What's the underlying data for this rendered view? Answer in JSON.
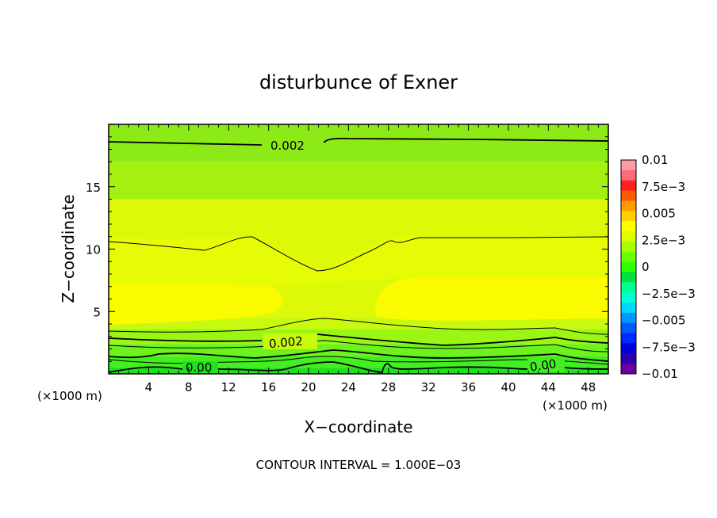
{
  "chart_data": {
    "type": "heatmap",
    "title": "disturbunce of Exner",
    "xlabel": "X−coordinate",
    "ylabel": "Z−coordinate",
    "x_unit_left": "(×1000 m)",
    "x_unit_right": "(×1000 m)",
    "xlim": [
      0,
      50
    ],
    "ylim": [
      0,
      20
    ],
    "x_ticks": [
      "4",
      "8",
      "12",
      "16",
      "20",
      "24",
      "28",
      "32",
      "36",
      "40",
      "44",
      "48"
    ],
    "y_ticks": [
      "5",
      "10",
      "15"
    ],
    "footer": "CONTOUR INTERVAL = 1.000E−03",
    "colorbar": {
      "labels": [
        "0.01",
        "7.5e−3",
        "0.005",
        "2.5e−3",
        "0",
        "−2.5e−3",
        "−0.005",
        "−7.5e−3",
        "−0.01"
      ],
      "levels": [
        0.01,
        0.0075,
        0.005,
        0.0025,
        0,
        -0.0025,
        -0.005,
        -0.0075,
        -0.01
      ],
      "colors": [
        "#ff9aa8",
        "#ff6a78",
        "#ff2020",
        "#ff5a00",
        "#ff9a00",
        "#ffd000",
        "#ffff00",
        "#dcff00",
        "#a8ff00",
        "#6cff00",
        "#30ff00",
        "#00e040",
        "#00ff8c",
        "#00ffd2",
        "#00d8ff",
        "#0096ff",
        "#005aff",
        "#0028ff",
        "#0000d8",
        "#2a00b0",
        "#6a00a0"
      ]
    },
    "contour_labels": [
      "0.002",
      "0.002",
      "0.00",
      "0.00"
    ],
    "bands": [
      {
        "z0": 0.0,
        "z1": 0.5,
        "color": "#1ee21e"
      },
      {
        "z0": 0.5,
        "z1": 1.4,
        "color": "#44ee22"
      },
      {
        "z0": 1.4,
        "z1": 2.4,
        "color": "#6cf21c"
      },
      {
        "z0": 2.4,
        "z1": 3.6,
        "color": "#9cf614"
      },
      {
        "z0": 3.6,
        "z1": 4.5,
        "color": "#c8fa0e"
      },
      {
        "z0": 4.5,
        "z1": 14.0,
        "color": "#dcfa08"
      },
      {
        "z0": 14.0,
        "z1": 17.0,
        "color": "#a4f010"
      },
      {
        "z0": 17.0,
        "z1": 20.0,
        "color": "#8cea16"
      }
    ]
  }
}
